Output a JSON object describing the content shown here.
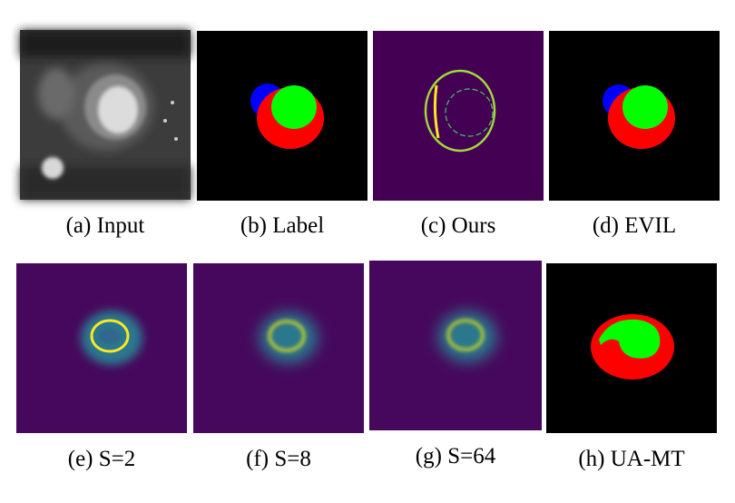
{
  "figure": {
    "panels": [
      {
        "caption": "(a) Input"
      },
      {
        "caption": "(b) Label"
      },
      {
        "caption": "(c) Ours"
      },
      {
        "caption": "(d) EVIL"
      },
      {
        "caption": "(e) S=2"
      },
      {
        "caption": "(f) S=8"
      },
      {
        "caption": "(g) S=64"
      },
      {
        "caption": "(h) UA-MT"
      }
    ]
  }
}
